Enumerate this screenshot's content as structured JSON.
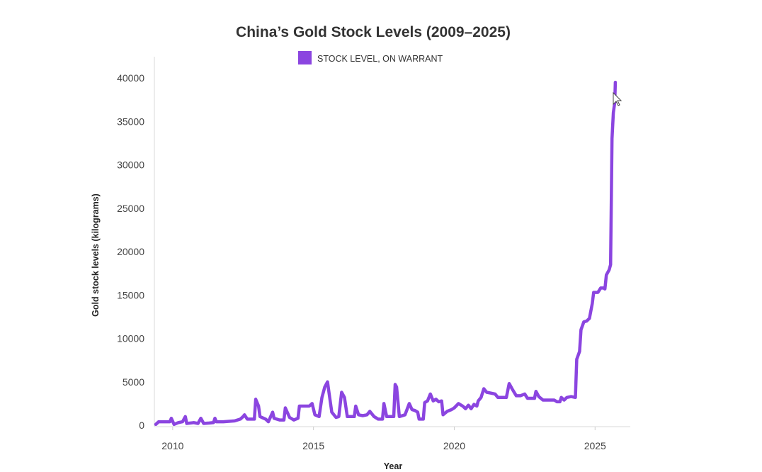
{
  "chart_data": {
    "type": "line",
    "title": "China’s Gold Stock Levels (2009–2025)",
    "xlabel": "Year",
    "ylabel": "Gold stock levels (kilograms)",
    "xlim": [
      2009.35,
      2026.25
    ],
    "ylim": [
      0,
      40000
    ],
    "x_ticks": [
      2010,
      2015,
      2020,
      2025
    ],
    "y_ticks": [
      0,
      5000,
      10000,
      15000,
      20000,
      25000,
      30000,
      35000,
      40000
    ],
    "grid": false,
    "legend": "top-center",
    "series": [
      {
        "name": "STOCK LEVEL, ON WARRANT",
        "color": "#8b45e0",
        "points": [
          [
            2009.4,
            100
          ],
          [
            2009.5,
            400
          ],
          [
            2009.7,
            400
          ],
          [
            2009.9,
            400
          ],
          [
            2009.95,
            800
          ],
          [
            2010.05,
            100
          ],
          [
            2010.2,
            300
          ],
          [
            2010.35,
            400
          ],
          [
            2010.45,
            1000
          ],
          [
            2010.5,
            200
          ],
          [
            2010.75,
            300
          ],
          [
            2010.9,
            200
          ],
          [
            2011.0,
            800
          ],
          [
            2011.1,
            200
          ],
          [
            2011.3,
            250
          ],
          [
            2011.45,
            300
          ],
          [
            2011.5,
            800
          ],
          [
            2011.55,
            400
          ],
          [
            2011.8,
            400
          ],
          [
            2012.2,
            500
          ],
          [
            2012.4,
            700
          ],
          [
            2012.5,
            1000
          ],
          [
            2012.55,
            1200
          ],
          [
            2012.65,
            700
          ],
          [
            2012.8,
            700
          ],
          [
            2012.9,
            700
          ],
          [
            2012.95,
            3000
          ],
          [
            2013.05,
            2200
          ],
          [
            2013.1,
            1000
          ],
          [
            2013.3,
            700
          ],
          [
            2013.4,
            400
          ],
          [
            2013.55,
            1500
          ],
          [
            2013.6,
            800
          ],
          [
            2013.8,
            600
          ],
          [
            2013.95,
            600
          ],
          [
            2014.0,
            2000
          ],
          [
            2014.15,
            900
          ],
          [
            2014.3,
            600
          ],
          [
            2014.45,
            800
          ],
          [
            2014.5,
            2200
          ],
          [
            2014.7,
            2200
          ],
          [
            2014.85,
            2200
          ],
          [
            2014.95,
            2500
          ],
          [
            2015.05,
            1200
          ],
          [
            2015.2,
            1000
          ],
          [
            2015.3,
            3200
          ],
          [
            2015.4,
            4400
          ],
          [
            2015.5,
            5000
          ],
          [
            2015.55,
            3800
          ],
          [
            2015.65,
            1500
          ],
          [
            2015.8,
            900
          ],
          [
            2015.9,
            1000
          ],
          [
            2016.0,
            3800
          ],
          [
            2016.1,
            3200
          ],
          [
            2016.2,
            1000
          ],
          [
            2016.35,
            1000
          ],
          [
            2016.45,
            1000
          ],
          [
            2016.5,
            2200
          ],
          [
            2016.6,
            1200
          ],
          [
            2016.75,
            1100
          ],
          [
            2016.9,
            1200
          ],
          [
            2017.0,
            1600
          ],
          [
            2017.15,
            1000
          ],
          [
            2017.3,
            700
          ],
          [
            2017.45,
            700
          ],
          [
            2017.5,
            2500
          ],
          [
            2017.6,
            1000
          ],
          [
            2017.75,
            1000
          ],
          [
            2017.85,
            1000
          ],
          [
            2017.9,
            4700
          ],
          [
            2017.95,
            4400
          ],
          [
            2018.05,
            1000
          ],
          [
            2018.25,
            1200
          ],
          [
            2018.4,
            2500
          ],
          [
            2018.5,
            1800
          ],
          [
            2018.6,
            1700
          ],
          [
            2018.7,
            1500
          ],
          [
            2018.75,
            700
          ],
          [
            2018.9,
            700
          ],
          [
            2018.95,
            2600
          ],
          [
            2019.05,
            2800
          ],
          [
            2019.15,
            3600
          ],
          [
            2019.25,
            2800
          ],
          [
            2019.35,
            3000
          ],
          [
            2019.45,
            2700
          ],
          [
            2019.55,
            2800
          ],
          [
            2019.6,
            1200
          ],
          [
            2019.75,
            1600
          ],
          [
            2019.9,
            1800
          ],
          [
            2020.0,
            2000
          ],
          [
            2020.15,
            2500
          ],
          [
            2020.3,
            2200
          ],
          [
            2020.4,
            1900
          ],
          [
            2020.5,
            2300
          ],
          [
            2020.6,
            1900
          ],
          [
            2020.7,
            2400
          ],
          [
            2020.8,
            2200
          ],
          [
            2020.85,
            2800
          ],
          [
            2020.95,
            3200
          ],
          [
            2021.05,
            4200
          ],
          [
            2021.15,
            3800
          ],
          [
            2021.3,
            3700
          ],
          [
            2021.45,
            3600
          ],
          [
            2021.55,
            3200
          ],
          [
            2021.7,
            3200
          ],
          [
            2021.85,
            3200
          ],
          [
            2021.95,
            4800
          ],
          [
            2022.05,
            4200
          ],
          [
            2022.2,
            3400
          ],
          [
            2022.35,
            3400
          ],
          [
            2022.5,
            3600
          ],
          [
            2022.6,
            3100
          ],
          [
            2022.75,
            3100
          ],
          [
            2022.85,
            3100
          ],
          [
            2022.9,
            3900
          ],
          [
            2023.0,
            3300
          ],
          [
            2023.15,
            2900
          ],
          [
            2023.35,
            2900
          ],
          [
            2023.55,
            2900
          ],
          [
            2023.65,
            2700
          ],
          [
            2023.75,
            2700
          ],
          [
            2023.8,
            3200
          ],
          [
            2023.9,
            2900
          ],
          [
            2024.0,
            3200
          ],
          [
            2024.15,
            3300
          ],
          [
            2024.3,
            3200
          ],
          [
            2024.35,
            7600
          ],
          [
            2024.45,
            8500
          ],
          [
            2024.5,
            11000
          ],
          [
            2024.6,
            11900
          ],
          [
            2024.7,
            12000
          ],
          [
            2024.8,
            12300
          ],
          [
            2024.9,
            14000
          ],
          [
            2024.95,
            15300
          ],
          [
            2025.1,
            15300
          ],
          [
            2025.2,
            15800
          ],
          [
            2025.3,
            15800
          ],
          [
            2025.35,
            15700
          ],
          [
            2025.4,
            17300
          ],
          [
            2025.5,
            17900
          ],
          [
            2025.55,
            18500
          ],
          [
            2025.6,
            33000
          ],
          [
            2025.65,
            36000
          ],
          [
            2025.7,
            37200
          ],
          [
            2025.72,
            39500
          ]
        ]
      }
    ]
  }
}
